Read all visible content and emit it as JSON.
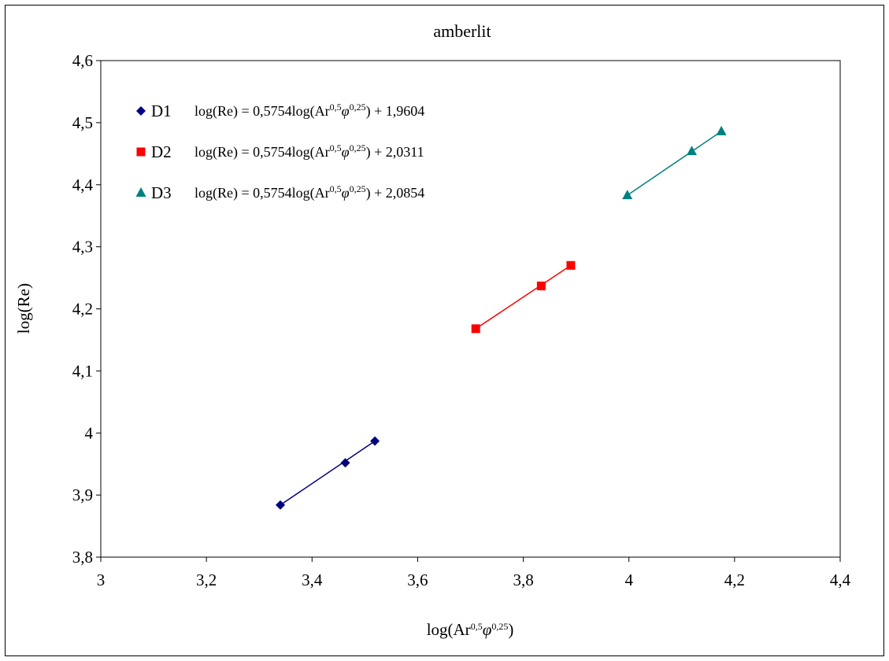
{
  "chart_data": {
    "type": "scatter",
    "title": "amberlit",
    "xlabel": {
      "base": "log(Ar",
      "sup1": "0,5",
      "greek": "φ",
      "sup2": "0,25",
      "close": ")"
    },
    "ylabel": "log(Re)",
    "xlim": [
      3,
      4.4
    ],
    "ylim": [
      3.8,
      4.6
    ],
    "x_ticks": [
      "3",
      "3,2",
      "3,4",
      "3,6",
      "3,8",
      "4",
      "4,2",
      "4,4"
    ],
    "y_ticks": [
      "3,8",
      "3,9",
      "4",
      "4,1",
      "4,2",
      "4,3",
      "4,4",
      "4,5",
      "4,6"
    ],
    "grid": false,
    "legend_position": "top-left",
    "series": [
      {
        "name": "D1",
        "marker": "diamond",
        "color": "#000080",
        "x": [
          3.34,
          3.463,
          3.519
        ],
        "y": [
          3.884,
          3.952,
          3.987
        ],
        "trendline": true,
        "equation": {
          "pre": "log(Re) = 0,5754log(Ar",
          "sup1": "0,5",
          "greek": "φ",
          "sup2": "0,25",
          "post": ") + 1,9604"
        }
      },
      {
        "name": "D2",
        "marker": "square",
        "color": "#ff0000",
        "x": [
          3.71,
          3.834,
          3.89
        ],
        "y": [
          4.168,
          4.237,
          4.27
        ],
        "trendline": true,
        "equation": {
          "pre": "log(Re) = 0,5754log(Ar",
          "sup1": "0,5",
          "greek": "φ",
          "sup2": "0,25",
          "post": ") + 2,0311"
        }
      },
      {
        "name": "D3",
        "marker": "triangle",
        "color": "#008080",
        "x": [
          3.997,
          4.119,
          4.175
        ],
        "y": [
          4.383,
          4.454,
          4.486
        ],
        "trendline": true,
        "equation": {
          "pre": "log(Re) = 0,5754log(Ar",
          "sup1": "0,5",
          "greek": "φ",
          "sup2": "0,25",
          "post": ") + 2,0854"
        }
      }
    ]
  }
}
